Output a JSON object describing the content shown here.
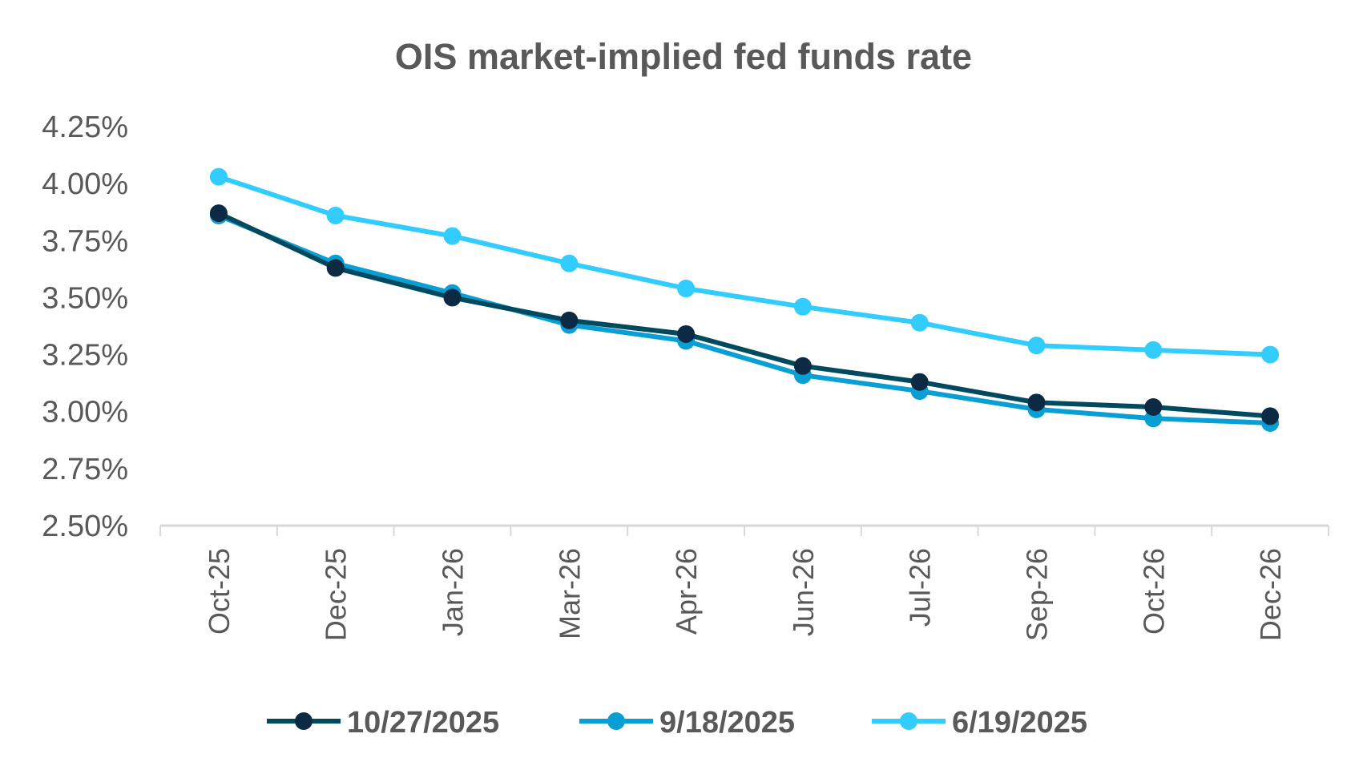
{
  "chart_data": {
    "type": "line",
    "title": "OIS market-implied fed funds rate",
    "xlabel": "",
    "ylabel": "",
    "categories": [
      "Oct-25",
      "Dec-25",
      "Jan-26",
      "Mar-26",
      "Apr-26",
      "Jun-26",
      "Jul-26",
      "Sep-26",
      "Oct-26",
      "Dec-26"
    ],
    "ylim": [
      2.5,
      4.25
    ],
    "yticks": [
      2.5,
      2.75,
      3.0,
      3.25,
      3.5,
      3.75,
      4.0,
      4.25
    ],
    "ytick_labels": [
      "2.50%",
      "2.75%",
      "3.00%",
      "3.25%",
      "3.50%",
      "3.75%",
      "4.00%",
      "4.25%"
    ],
    "grid": false,
    "legend_position": "bottom",
    "series": [
      {
        "name": "10/27/2025",
        "line_color": "#004a60",
        "marker_color": "#0d2a45",
        "values": [
          3.87,
          3.63,
          3.5,
          3.4,
          3.34,
          3.2,
          3.13,
          3.04,
          3.02,
          2.98
        ]
      },
      {
        "name": "9/18/2025",
        "line_color": "#0a9fd4",
        "marker_color": "#0a9fd4",
        "values": [
          3.86,
          3.65,
          3.52,
          3.38,
          3.31,
          3.16,
          3.09,
          3.01,
          2.97,
          2.95
        ]
      },
      {
        "name": "6/19/2025",
        "line_color": "#33ccff",
        "marker_color": "#33ccff",
        "values": [
          4.03,
          3.86,
          3.77,
          3.65,
          3.54,
          3.46,
          3.39,
          3.29,
          3.27,
          3.25
        ]
      }
    ]
  }
}
